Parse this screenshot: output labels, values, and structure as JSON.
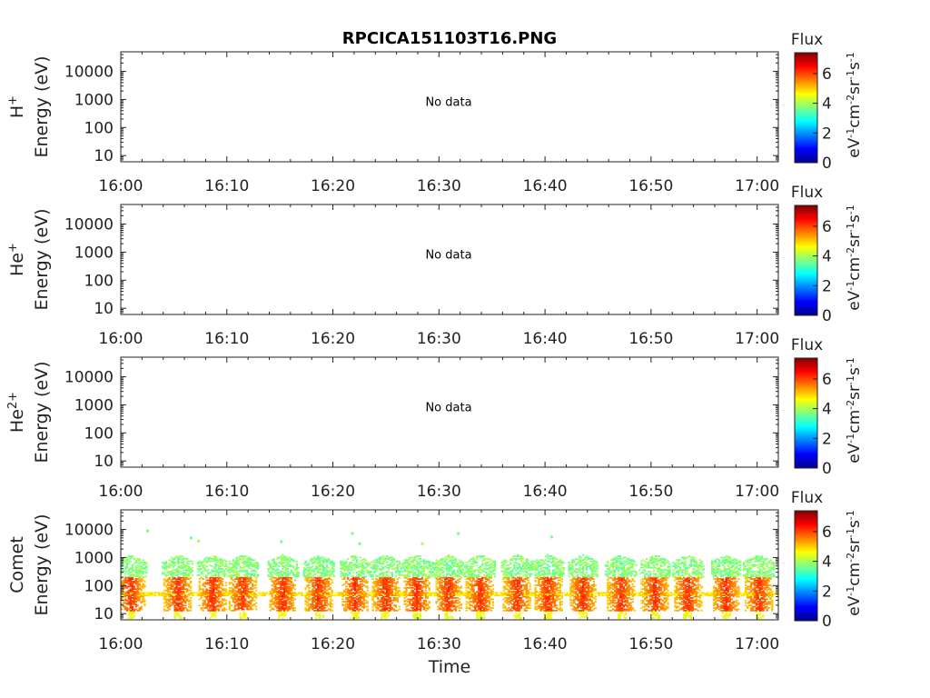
{
  "title": "RPCICA151103T16.PNG",
  "x_axis_label": "Time",
  "colorbar": {
    "title": "Flux",
    "label_parts": [
      "eV",
      "-1",
      "cm",
      "-2",
      "sr",
      "-1",
      "s",
      "-1"
    ],
    "range": [
      0,
      7.4
    ],
    "ticks": [
      "0",
      "2",
      "4",
      "6"
    ]
  },
  "chart_data": [
    {
      "type": "heatmap",
      "species": "H",
      "species_sup": "+",
      "ylabel": "Energy (eV)",
      "yscale": "log",
      "ylim": [
        6,
        50000
      ],
      "yticks": [
        "10",
        "100",
        "1000",
        "10000"
      ],
      "xlim": [
        "16:00",
        "17:02"
      ],
      "xticks": [
        "16:00",
        "16:10",
        "16:20",
        "16:30",
        "16:40",
        "16:50",
        "17:00"
      ],
      "annotation": "No data",
      "cells": []
    },
    {
      "type": "heatmap",
      "species": "He",
      "species_sup": "+",
      "ylabel": "Energy (eV)",
      "yscale": "log",
      "ylim": [
        6,
        50000
      ],
      "yticks": [
        "10",
        "100",
        "1000",
        "10000"
      ],
      "xlim": [
        "16:00",
        "17:02"
      ],
      "xticks": [
        "16:00",
        "16:10",
        "16:20",
        "16:30",
        "16:40",
        "16:50",
        "17:00"
      ],
      "annotation": "No data",
      "cells": []
    },
    {
      "type": "heatmap",
      "species": "He",
      "species_sup": "2+",
      "ylabel": "Energy (eV)",
      "yscale": "log",
      "ylim": [
        6,
        50000
      ],
      "yticks": [
        "10",
        "100",
        "1000",
        "10000"
      ],
      "xlim": [
        "16:00",
        "17:02"
      ],
      "xticks": [
        "16:00",
        "16:10",
        "16:20",
        "16:30",
        "16:40",
        "16:50",
        "17:00"
      ],
      "annotation": "No data",
      "cells": []
    },
    {
      "type": "heatmap",
      "species": "Comet",
      "species_sup": "",
      "ylabel": "Energy (eV)",
      "yscale": "log",
      "ylim": [
        6,
        50000
      ],
      "yticks": [
        "10",
        "100",
        "1000",
        "10000"
      ],
      "xlim": [
        "16:00",
        "17:02"
      ],
      "xticks": [
        "16:00",
        "16:10",
        "16:20",
        "16:30",
        "16:40",
        "16:50",
        "17:00"
      ],
      "annotation": "",
      "burst_times_min": [
        0.9,
        5.3,
        8.6,
        11.4,
        15.2,
        18.6,
        22.0,
        24.9,
        27.8,
        30.8,
        33.8,
        37.3,
        40.2,
        43.5,
        47.1,
        50.3,
        53.4,
        57.0,
        60.1
      ],
      "background_band_ev": [
        40,
        55
      ],
      "core_band_ev": [
        12,
        200
      ],
      "core_flux_range": [
        5.0,
        6.4
      ],
      "halo_band_ev": [
        200,
        1200
      ],
      "halo_flux_range": [
        3.3,
        4.2
      ],
      "sparse_points": [
        {
          "t": 2.4,
          "e": 8500,
          "flux": 3.6
        },
        {
          "t": 6.5,
          "e": 4800,
          "flux": 3.6
        },
        {
          "t": 7.2,
          "e": 3700,
          "flux": 4.0
        },
        {
          "t": 15.0,
          "e": 3500,
          "flux": 3.6
        },
        {
          "t": 21.7,
          "e": 7000,
          "flux": 3.6
        },
        {
          "t": 22.4,
          "e": 3000,
          "flux": 3.6
        },
        {
          "t": 28.3,
          "e": 3000,
          "flux": 4.0
        },
        {
          "t": 31.7,
          "e": 6800,
          "flux": 3.6
        },
        {
          "t": 40.5,
          "e": 5200,
          "flux": 3.6
        }
      ]
    }
  ]
}
